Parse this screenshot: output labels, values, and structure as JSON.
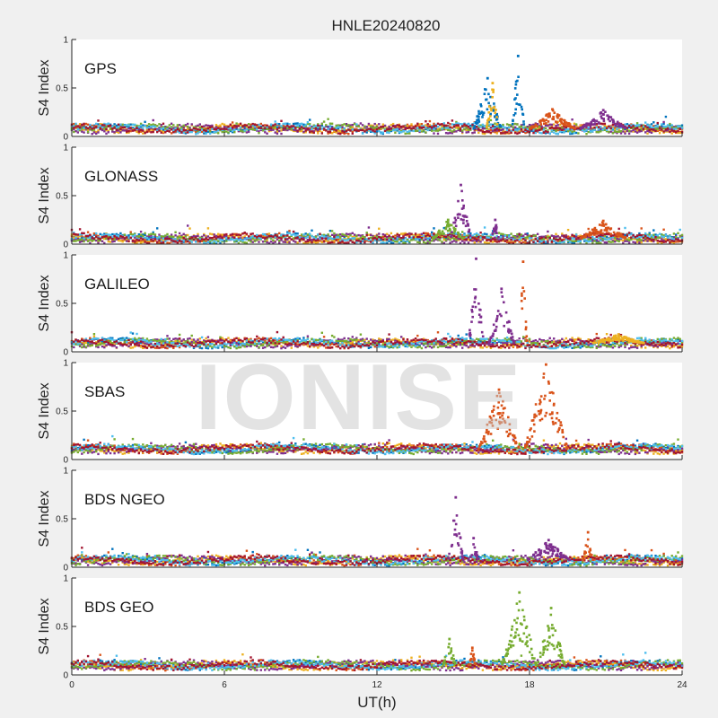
{
  "figure": {
    "title": "HNLE20240820",
    "watermark": "IONISE",
    "xlabel": "UT(h)",
    "ylabel": "S4 Index",
    "colors": [
      "#0072BD",
      "#D95319",
      "#EDB120",
      "#7E2F8E",
      "#77AC30",
      "#4DBEEE",
      "#A2142F"
    ]
  },
  "chart_data": [
    {
      "type": "scatter",
      "label": "GPS",
      "xlim": [
        0,
        24
      ],
      "ylim": [
        0,
        1
      ],
      "xticks": [
        0,
        6,
        12,
        18,
        24
      ],
      "yticks": [
        0,
        0.5,
        1
      ],
      "ytick_labels": [
        "0",
        "0.5",
        "1"
      ],
      "baseline": 0.08,
      "bursts": [
        {
          "t0": 15.8,
          "t1": 16.9,
          "peak": 0.6,
          "color": 0
        },
        {
          "t0": 16.3,
          "t1": 16.8,
          "peak": 0.55,
          "color": 2
        },
        {
          "t0": 17.3,
          "t1": 17.8,
          "peak": 0.83,
          "color": 0
        },
        {
          "t0": 18.0,
          "t1": 19.8,
          "peak": 0.28,
          "color": 1
        },
        {
          "t0": 20.0,
          "t1": 21.8,
          "peak": 0.27,
          "color": 3
        }
      ]
    },
    {
      "type": "scatter",
      "label": "GLONASS",
      "xlim": [
        0,
        24
      ],
      "ylim": [
        0,
        1
      ],
      "xticks": [
        0,
        6,
        12,
        18,
        24
      ],
      "yticks": [
        0,
        0.5,
        1
      ],
      "ytick_labels": [
        "0",
        "0.5",
        "1"
      ],
      "baseline": 0.06,
      "bursts": [
        {
          "t0": 14.2,
          "t1": 15.4,
          "peak": 0.25,
          "color": 4
        },
        {
          "t0": 14.9,
          "t1": 15.7,
          "peak": 0.61,
          "color": 3
        },
        {
          "t0": 16.5,
          "t1": 16.8,
          "peak": 0.25,
          "color": 3
        },
        {
          "t0": 20.0,
          "t1": 21.8,
          "peak": 0.24,
          "color": 1
        }
      ]
    },
    {
      "type": "scatter",
      "label": "GALILEO",
      "xlim": [
        0,
        24
      ],
      "ylim": [
        0,
        1
      ],
      "xticks": [
        0,
        6,
        12,
        18,
        24
      ],
      "yticks": [
        0,
        0.5,
        1
      ],
      "ytick_labels": [
        "0",
        "0.5",
        "1"
      ],
      "baseline": 0.09,
      "bursts": [
        {
          "t0": 15.6,
          "t1": 16.2,
          "peak": 0.96,
          "color": 3
        },
        {
          "t0": 16.4,
          "t1": 17.4,
          "peak": 0.65,
          "color": 3
        },
        {
          "t0": 17.6,
          "t1": 17.9,
          "peak": 0.93,
          "color": 1
        },
        {
          "t0": 20.5,
          "t1": 22.5,
          "peak": 0.18,
          "color": 2
        }
      ]
    },
    {
      "type": "scatter",
      "label": "SBAS",
      "xlim": [
        0,
        24
      ],
      "ylim": [
        0,
        1
      ],
      "xticks": [
        0,
        6,
        12,
        18,
        24
      ],
      "yticks": [
        0,
        0.5,
        1
      ],
      "ytick_labels": [
        "0",
        "0.5",
        "1"
      ],
      "baseline": 0.11,
      "bursts": [
        {
          "t0": 16.0,
          "t1": 17.6,
          "peak": 0.72,
          "color": 1
        },
        {
          "t0": 17.8,
          "t1": 19.5,
          "peak": 0.98,
          "color": 1
        }
      ]
    },
    {
      "type": "scatter",
      "label": "BDS NGEO",
      "xlim": [
        0,
        24
      ],
      "ylim": [
        0,
        1
      ],
      "xticks": [
        0,
        6,
        12,
        18,
        24
      ],
      "yticks": [
        0,
        0.5,
        1
      ],
      "ytick_labels": [
        "0",
        "0.5",
        "1"
      ],
      "baseline": 0.07,
      "bursts": [
        {
          "t0": 14.8,
          "t1": 15.4,
          "peak": 0.72,
          "color": 3
        },
        {
          "t0": 15.6,
          "t1": 16.0,
          "peak": 0.3,
          "color": 3
        },
        {
          "t0": 17.9,
          "t1": 19.6,
          "peak": 0.28,
          "color": 3
        },
        {
          "t0": 20.1,
          "t1": 20.5,
          "peak": 0.36,
          "color": 1
        }
      ]
    },
    {
      "type": "scatter",
      "label": "BDS GEO",
      "xlim": [
        0,
        24
      ],
      "ylim": [
        0,
        1
      ],
      "xticks": [
        0,
        6,
        12,
        18,
        24
      ],
      "yticks": [
        0,
        0.5,
        1
      ],
      "ytick_labels": [
        "0",
        "0.5",
        "1"
      ],
      "baseline": 0.1,
      "bursts": [
        {
          "t0": 14.6,
          "t1": 15.1,
          "peak": 0.37,
          "color": 4
        },
        {
          "t0": 15.6,
          "t1": 15.9,
          "peak": 0.28,
          "color": 1
        },
        {
          "t0": 16.9,
          "t1": 18.3,
          "peak": 0.85,
          "color": 4
        },
        {
          "t0": 18.3,
          "t1": 19.4,
          "peak": 0.69,
          "color": 4
        }
      ]
    }
  ]
}
